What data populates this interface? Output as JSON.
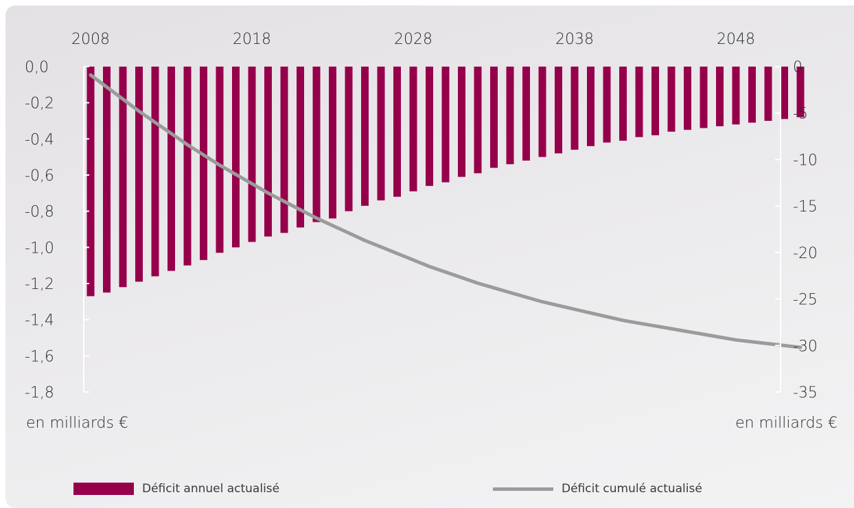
{
  "chart_data": {
    "type": "bar+line",
    "x": [
      2008,
      2009,
      2010,
      2011,
      2012,
      2013,
      2014,
      2015,
      2016,
      2017,
      2018,
      2019,
      2020,
      2021,
      2022,
      2023,
      2024,
      2025,
      2026,
      2027,
      2028,
      2029,
      2030,
      2031,
      2032,
      2033,
      2034,
      2035,
      2036,
      2037,
      2038,
      2039,
      2040,
      2041,
      2042,
      2043,
      2044,
      2045,
      2046,
      2047,
      2048,
      2049,
      2050,
      2051,
      2052
    ],
    "x_ticks": [
      "2008",
      "2018",
      "2028",
      "2038",
      "2048"
    ],
    "left_axis": {
      "ticks": [
        "0,0",
        "-0,2",
        "-0,4",
        "-0,6",
        "-0,8",
        "-1,0",
        "-1,2",
        "-1,4",
        "-1,6",
        "-1,8"
      ],
      "range": [
        -1.8,
        0
      ],
      "unit": "en milliards €"
    },
    "right_axis": {
      "ticks": [
        "0",
        "-5",
        "-10",
        "-15",
        "-20",
        "-25",
        "-30",
        "-35"
      ],
      "range": [
        -35,
        0
      ],
      "unit": "en milliards €"
    },
    "series": [
      {
        "name": "Déficit annuel actualisé",
        "type": "bar",
        "axis": "left",
        "color": "#96004b",
        "values": [
          -1.27,
          -1.25,
          -1.22,
          -1.19,
          -1.16,
          -1.13,
          -1.1,
          -1.07,
          -1.03,
          -1.0,
          -0.97,
          -0.94,
          -0.92,
          -0.89,
          -0.86,
          -0.84,
          -0.8,
          -0.77,
          -0.74,
          -0.72,
          -0.69,
          -0.66,
          -0.64,
          -0.61,
          -0.59,
          -0.56,
          -0.54,
          -0.52,
          -0.5,
          -0.48,
          -0.46,
          -0.44,
          -0.42,
          -0.41,
          -0.39,
          -0.38,
          -0.36,
          -0.35,
          -0.34,
          -0.33,
          -0.32,
          -0.31,
          -0.3,
          -0.29,
          -0.28
        ]
      },
      {
        "name": "Déficit cumulé actualisé",
        "type": "line",
        "axis": "right",
        "color": "#9b9b9b",
        "values": [
          -0.9,
          -2.2,
          -3.5,
          -4.8,
          -6.0,
          -7.2,
          -8.4,
          -9.5,
          -10.6,
          -11.6,
          -12.6,
          -13.6,
          -14.5,
          -15.4,
          -16.3,
          -17.1,
          -17.9,
          -18.7,
          -19.4,
          -20.1,
          -20.8,
          -21.5,
          -22.1,
          -22.7,
          -23.3,
          -23.8,
          -24.3,
          -24.8,
          -25.3,
          -25.7,
          -26.1,
          -26.5,
          -26.9,
          -27.3,
          -27.6,
          -27.9,
          -28.2,
          -28.5,
          -28.8,
          -29.1,
          -29.4,
          -29.6,
          -29.8,
          -30.0,
          -30.2
        ]
      }
    ],
    "grid": false,
    "legend_position": "bottom"
  },
  "legend": {
    "bars_label": "Déficit annuel actualisé",
    "line_label": "Déficit cumulé actualisé"
  },
  "units": {
    "left": "en milliards €",
    "right": "en milliards €"
  }
}
